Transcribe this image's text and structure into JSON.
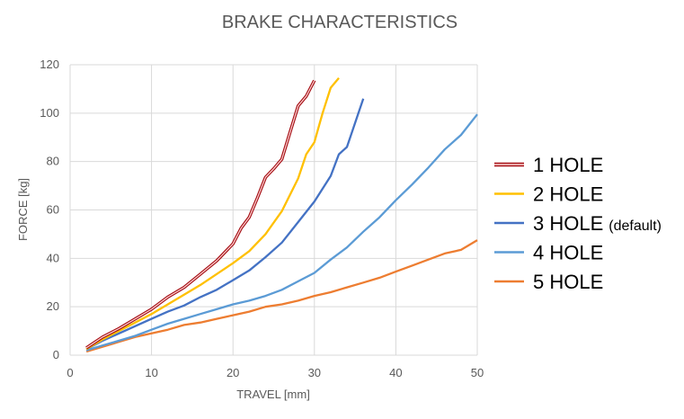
{
  "chart_data": {
    "type": "line",
    "title": "BRAKE CHARACTERISTICS",
    "xlabel": "TRAVEL [mm]",
    "ylabel": "FORCE [kg]",
    "xlim": [
      0,
      50
    ],
    "ylim": [
      0,
      120
    ],
    "xticks": [
      "0",
      "10",
      "20",
      "30",
      "40",
      "50"
    ],
    "yticks": [
      "0",
      "20",
      "40",
      "60",
      "80",
      "100",
      "120"
    ],
    "grid": true,
    "legend_position": "right",
    "series": [
      {
        "name": "1 HOLE",
        "note": "",
        "color": "#e31a1c",
        "points": [
          [
            2,
            3
          ],
          [
            4,
            7.5
          ],
          [
            6,
            11
          ],
          [
            8,
            15
          ],
          [
            10,
            19
          ],
          [
            12,
            24
          ],
          [
            14,
            28
          ],
          [
            16,
            33.5
          ],
          [
            18,
            39
          ],
          [
            20,
            46
          ],
          [
            21,
            52.5
          ],
          [
            22,
            57
          ],
          [
            23,
            65
          ],
          [
            24,
            73.5
          ],
          [
            25,
            77
          ],
          [
            26,
            81
          ],
          [
            27,
            92
          ],
          [
            28,
            103
          ],
          [
            29,
            107
          ],
          [
            30,
            113.5
          ]
        ]
      },
      {
        "name": "2 HOLE",
        "note": "",
        "color": "#ffc000",
        "points": [
          [
            2,
            2.5
          ],
          [
            4,
            6.5
          ],
          [
            6,
            10
          ],
          [
            8,
            13.5
          ],
          [
            10,
            17
          ],
          [
            12,
            21
          ],
          [
            14,
            25
          ],
          [
            16,
            29
          ],
          [
            18,
            33.5
          ],
          [
            20,
            38
          ],
          [
            22,
            43
          ],
          [
            24,
            50
          ],
          [
            26,
            59.5
          ],
          [
            28,
            73
          ],
          [
            29,
            83
          ],
          [
            30,
            88
          ],
          [
            31,
            100
          ],
          [
            32,
            110.5
          ],
          [
            33,
            114.5
          ]
        ]
      },
      {
        "name": "3 HOLE",
        "note": "(default)",
        "color": "#4472c4",
        "points": [
          [
            2,
            2.5
          ],
          [
            4,
            6
          ],
          [
            6,
            9
          ],
          [
            8,
            12
          ],
          [
            10,
            15
          ],
          [
            12,
            18
          ],
          [
            14,
            20.5
          ],
          [
            16,
            24
          ],
          [
            18,
            27
          ],
          [
            20,
            31
          ],
          [
            22,
            35
          ],
          [
            24,
            40.5
          ],
          [
            26,
            46.5
          ],
          [
            28,
            55
          ],
          [
            30,
            63.5
          ],
          [
            32,
            74
          ],
          [
            33,
            83
          ],
          [
            34,
            86
          ],
          [
            36,
            106
          ]
        ]
      },
      {
        "name": "4 HOLE",
        "note": "",
        "color": "#5b9bd5",
        "points": [
          [
            2,
            2
          ],
          [
            4,
            4
          ],
          [
            6,
            6
          ],
          [
            8,
            8
          ],
          [
            10,
            10.5
          ],
          [
            12,
            13
          ],
          [
            14,
            15
          ],
          [
            16,
            17
          ],
          [
            18,
            19
          ],
          [
            20,
            21
          ],
          [
            22,
            22.5
          ],
          [
            24,
            24.5
          ],
          [
            26,
            27
          ],
          [
            28,
            30.5
          ],
          [
            30,
            34
          ],
          [
            32,
            39.5
          ],
          [
            34,
            44.5
          ],
          [
            36,
            51
          ],
          [
            38,
            57
          ],
          [
            40,
            64
          ],
          [
            42,
            70.5
          ],
          [
            44,
            77.5
          ],
          [
            46,
            85
          ],
          [
            48,
            91
          ],
          [
            50,
            99.5
          ]
        ]
      },
      {
        "name": "5 HOLE",
        "note": "",
        "color": "#ed7d31",
        "points": [
          [
            2,
            1.5
          ],
          [
            4,
            3.5
          ],
          [
            6,
            5.5
          ],
          [
            8,
            7.5
          ],
          [
            10,
            9
          ],
          [
            12,
            10.5
          ],
          [
            14,
            12.5
          ],
          [
            16,
            13.5
          ],
          [
            18,
            15
          ],
          [
            20,
            16.5
          ],
          [
            22,
            18
          ],
          [
            24,
            20
          ],
          [
            26,
            21
          ],
          [
            28,
            22.5
          ],
          [
            30,
            24.5
          ],
          [
            32,
            26
          ],
          [
            34,
            28
          ],
          [
            36,
            30
          ],
          [
            38,
            32
          ],
          [
            40,
            34.5
          ],
          [
            42,
            37
          ],
          [
            44,
            39.5
          ],
          [
            46,
            42
          ],
          [
            48,
            43.5
          ],
          [
            50,
            47.5
          ]
        ]
      }
    ]
  }
}
